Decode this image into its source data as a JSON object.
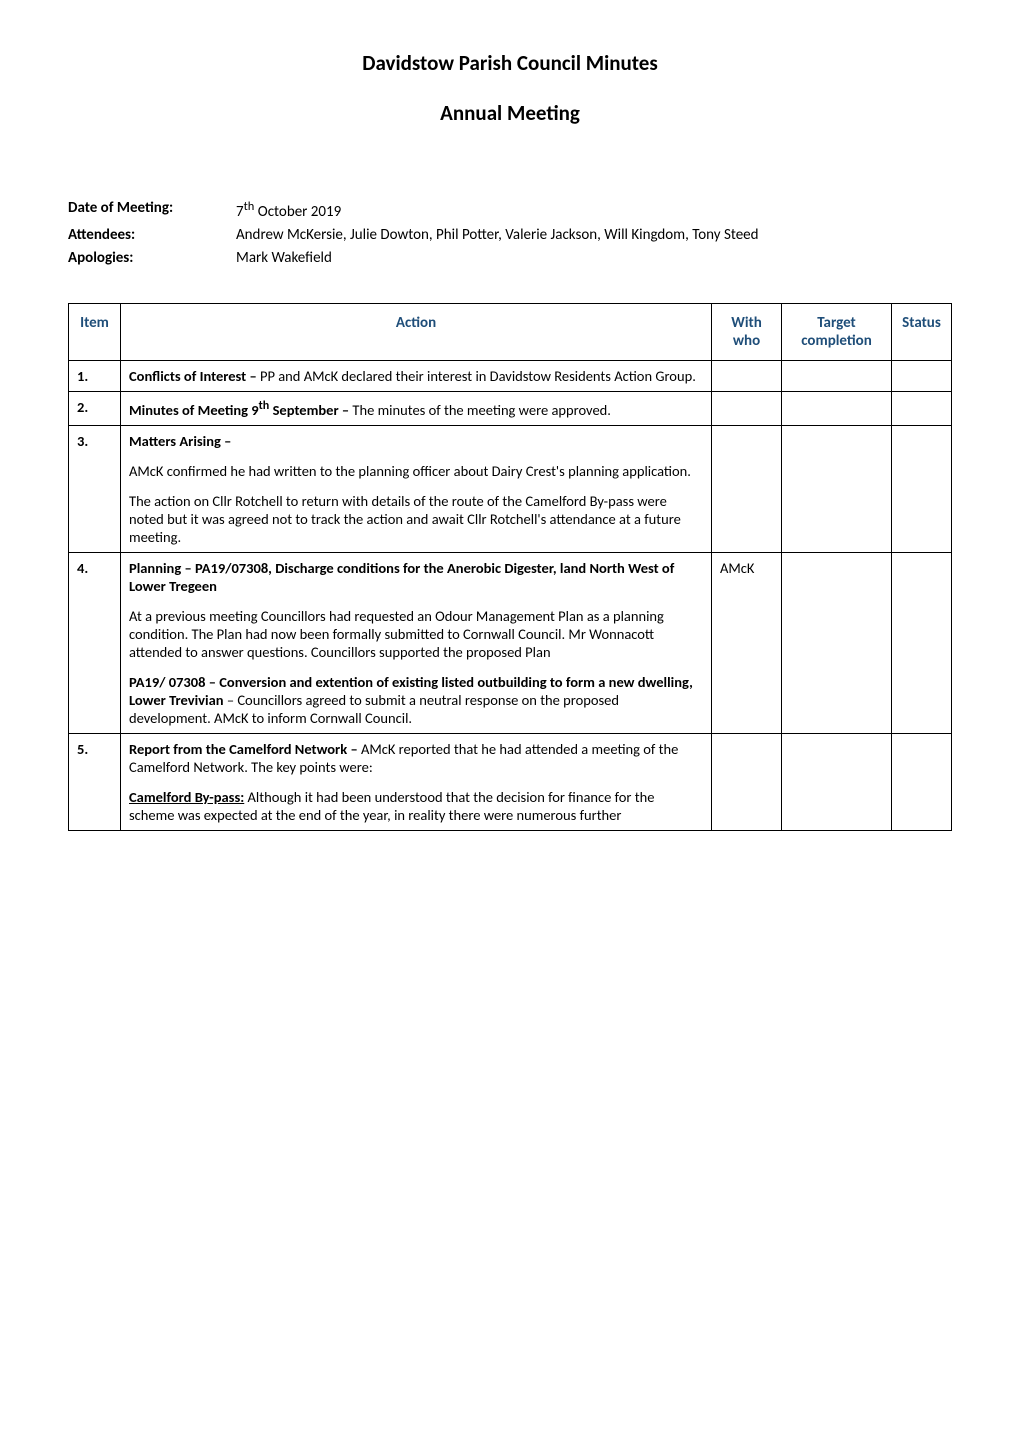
{
  "title": "Davidstow Parish Council Minutes",
  "subtitle": "Annual Meeting",
  "meta": {
    "date_label": "Date of Meeting",
    "date_value": "7th October 2019",
    "date_sup": "th",
    "attendees_label": "Attendees",
    "attendees_value": "Andrew McKersie, Julie Dowton, Phil Potter, Valerie Jackson, Will Kingdom, Tony Steed",
    "apologies_label": "Apologies",
    "apologies_value": "Mark Wakefield"
  },
  "table": {
    "headers": {
      "item": "Item",
      "action": "Action",
      "with": "With who",
      "target": "Target completion",
      "status": "Status"
    },
    "header_color": "#1f4e79",
    "border_color": "#000000",
    "rows": [
      {
        "no": "1.",
        "with": "",
        "target": "",
        "status": "",
        "paras": [
          {
            "bold_lead": "Conflicts of Interest –",
            "rest": "  PP and AMcK declared their interest in Davidstow Residents Action Group."
          }
        ]
      },
      {
        "no": "2.",
        "with": "",
        "target": "",
        "status": "",
        "paras": [
          {
            "bold_lead": "Minutes of Meeting 9th September –",
            "rest": "  The minutes of the meeting were approved."
          }
        ]
      },
      {
        "no": "3.",
        "with": "",
        "target": "",
        "status": "",
        "paras": [
          {
            "bold_lead": "Matters Arising –",
            "rest": ""
          },
          {
            "bold_lead": "",
            "rest": "AMcK confirmed he had written to the planning officer about Dairy Crest's planning application."
          },
          {
            "bold_lead": "",
            "rest": "The action on Cllr Rotchell to return with details of the route of the Camelford By-pass were noted but it was agreed not to track the action and await Cllr Rotchell's attendance at a future meeting."
          }
        ]
      },
      {
        "no": "4.",
        "with": "AMcK",
        "target": "",
        "status": "",
        "paras": [
          {
            "bold_lead": "Planning – PA19/07308,  Discharge conditions for the Anerobic Digester, land North West of Lower Tregeen",
            "rest": ""
          },
          {
            "bold_lead": "",
            "rest": "At a previous meeting Councillors had requested an Odour Management Plan as a planning condition. The Plan had now been formally submitted to Cornwall Council. Mr Wonnacott attended to answer questions. Councillors supported the proposed Plan"
          },
          {
            "bold_lead": "PA19/ 07308 – Conversion and extention of existing listed outbuilding to form a new dwelling, Lower Trevivian",
            "rest": " – Councillors agreed to submit a neutral response on the proposed development. AMcK to inform Cornwall Council."
          }
        ]
      },
      {
        "no": "5.",
        "with": "",
        "target": "",
        "status": "",
        "paras": [
          {
            "bold_lead": "Report from the Camelford Network –",
            "rest": " AMcK reported that he had attended a meeting of the Camelford Network. The key points were:"
          },
          {
            "bold_lead_u": "Camelford By-pass:",
            "rest": " Although it had been understood that the decision for finance for the scheme was expected at the end of the year, in reality there were numerous further"
          }
        ]
      }
    ]
  }
}
